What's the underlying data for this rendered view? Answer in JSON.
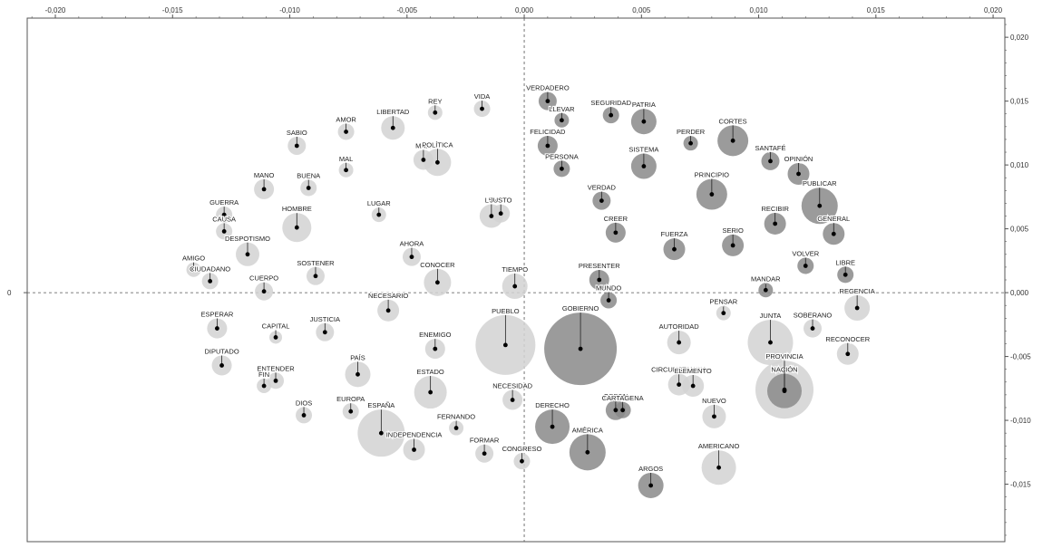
{
  "chart_data": {
    "type": "scatter",
    "title": "",
    "xlabel": "",
    "ylabel": "",
    "xlim": [
      -0.0212,
      0.0205
    ],
    "ylim": [
      -0.0195,
      0.0215
    ],
    "grid": false,
    "zero_lines": true,
    "x_ticks": [
      -0.02,
      -0.015,
      -0.01,
      -0.005,
      0.0,
      0.005,
      0.01,
      0.015,
      0.02
    ],
    "x_tick_labels": [
      "-0,020",
      "-0,015",
      "-0,010",
      "-0,005",
      "0,000",
      "0,005",
      "0,010",
      "0,015",
      "0,020"
    ],
    "y_ticks": [
      0.02,
      0.015,
      0.01,
      0.005,
      0.0,
      -0.005,
      -0.01,
      -0.015,
      -0.02
    ],
    "y_tick_labels": [
      "0,020",
      "0,015",
      "0,010",
      "0,005",
      "0,000",
      "-0,005",
      "-0,010",
      "-0,015",
      "-0,020"
    ],
    "y_axis_side_label": "0",
    "colors": {
      "light": "#d2d2d2",
      "dark": "#8a8a8a",
      "dot": "#000000",
      "axis": "#555555"
    },
    "points": [
      {
        "label": "VIDA",
        "x": -0.0018,
        "y": 0.0144,
        "size": 9,
        "group": "light"
      },
      {
        "label": "REY",
        "x": -0.0038,
        "y": 0.0141,
        "size": 8,
        "group": "light"
      },
      {
        "label": "LIBERTAD",
        "x": -0.0056,
        "y": 0.0129,
        "size": 13,
        "group": "light"
      },
      {
        "label": "AMOR",
        "x": -0.0076,
        "y": 0.0126,
        "size": 9,
        "group": "light"
      },
      {
        "label": "SABIO",
        "x": -0.0097,
        "y": 0.0115,
        "size": 10,
        "group": "light"
      },
      {
        "label": "MAL",
        "x": -0.0076,
        "y": 0.0096,
        "size": 8,
        "group": "light"
      },
      {
        "label": "MA...",
        "x": -0.0043,
        "y": 0.0104,
        "size": 11,
        "group": "light"
      },
      {
        "label": "POLÍTICA",
        "x": -0.0037,
        "y": 0.0102,
        "size": 15,
        "group": "light"
      },
      {
        "label": "BUENA",
        "x": -0.0092,
        "y": 0.0082,
        "size": 9,
        "group": "light"
      },
      {
        "label": "MANO",
        "x": -0.0111,
        "y": 0.0081,
        "size": 11,
        "group": "light"
      },
      {
        "label": "LEY",
        "x": -0.0014,
        "y": 0.006,
        "size": 13,
        "group": "light"
      },
      {
        "label": "JUSTO",
        "x": -0.001,
        "y": 0.0062,
        "size": 10,
        "group": "light"
      },
      {
        "label": "LUGAR",
        "x": -0.0062,
        "y": 0.0061,
        "size": 8,
        "group": "light"
      },
      {
        "label": "GUERRA",
        "x": -0.0128,
        "y": 0.0061,
        "size": 9,
        "group": "light"
      },
      {
        "label": "CAUSA",
        "x": -0.0128,
        "y": 0.0048,
        "size": 9,
        "group": "light"
      },
      {
        "label": "HOMBRE",
        "x": -0.0097,
        "y": 0.0051,
        "size": 16,
        "group": "light"
      },
      {
        "label": "DESPOTISMO",
        "x": -0.0118,
        "y": 0.003,
        "size": 13,
        "group": "light"
      },
      {
        "label": "AHORA",
        "x": -0.0048,
        "y": 0.0028,
        "size": 10,
        "group": "light"
      },
      {
        "label": "AMIGO",
        "x": -0.0141,
        "y": 0.0018,
        "size": 8,
        "group": "light"
      },
      {
        "label": "CIUDADANO",
        "x": -0.0134,
        "y": 0.0009,
        "size": 9,
        "group": "light"
      },
      {
        "label": "SOSTENER",
        "x": -0.0089,
        "y": 0.0013,
        "size": 10,
        "group": "light"
      },
      {
        "label": "CONOCER",
        "x": -0.0037,
        "y": 0.0008,
        "size": 15,
        "group": "light"
      },
      {
        "label": "CUERPO",
        "x": -0.0111,
        "y": 0.0001,
        "size": 10,
        "group": "light"
      },
      {
        "label": "TIEMPO",
        "x": -0.0004,
        "y": 0.0005,
        "size": 14,
        "group": "light"
      },
      {
        "label": "NECESARIO",
        "x": -0.0058,
        "y": -0.0014,
        "size": 12,
        "group": "light"
      },
      {
        "label": "ESPERAR",
        "x": -0.0131,
        "y": -0.0028,
        "size": 11,
        "group": "light"
      },
      {
        "label": "CAPITAL",
        "x": -0.0106,
        "y": -0.0035,
        "size": 7,
        "group": "light"
      },
      {
        "label": "JUSTICIA",
        "x": -0.0085,
        "y": -0.0031,
        "size": 10,
        "group": "light"
      },
      {
        "label": "ENEMIGO",
        "x": -0.0038,
        "y": -0.0044,
        "size": 11,
        "group": "light"
      },
      {
        "label": "PUEBLO",
        "x": -0.0008,
        "y": -0.0041,
        "size": 33,
        "group": "light"
      },
      {
        "label": "DIPUTADO",
        "x": -0.0129,
        "y": -0.0057,
        "size": 11,
        "group": "light"
      },
      {
        "label": "PAÍS",
        "x": -0.0071,
        "y": -0.0064,
        "size": 14,
        "group": "light"
      },
      {
        "label": "ENTENDER",
        "x": -0.0106,
        "y": -0.0069,
        "size": 9,
        "group": "light"
      },
      {
        "label": "FIN",
        "x": -0.0111,
        "y": -0.0073,
        "size": 8,
        "group": "light"
      },
      {
        "label": "ESTADO",
        "x": -0.004,
        "y": -0.0078,
        "size": 18,
        "group": "light"
      },
      {
        "label": "NECESIDAD",
        "x": -0.0005,
        "y": -0.0084,
        "size": 11,
        "group": "light"
      },
      {
        "label": "DIOS",
        "x": -0.0094,
        "y": -0.0096,
        "size": 9,
        "group": "light"
      },
      {
        "label": "EUROPA",
        "x": -0.0074,
        "y": -0.0093,
        "size": 9,
        "group": "light"
      },
      {
        "label": "ESPAÑA",
        "x": -0.0061,
        "y": -0.011,
        "size": 26,
        "group": "light"
      },
      {
        "label": "FERNANDO",
        "x": -0.0029,
        "y": -0.0106,
        "size": 8,
        "group": "light"
      },
      {
        "label": "INDEPENDENCIA",
        "x": -0.0047,
        "y": -0.0123,
        "size": 12,
        "group": "light"
      },
      {
        "label": "FORMAR",
        "x": -0.0017,
        "y": -0.0126,
        "size": 10,
        "group": "light"
      },
      {
        "label": "CONGRESO",
        "x": -0.0001,
        "y": -0.0132,
        "size": 9,
        "group": "light"
      },
      {
        "label": "VERDADERO",
        "x": 0.001,
        "y": 0.015,
        "size": 10,
        "group": "dark"
      },
      {
        "label": "LLEVAR",
        "x": 0.0016,
        "y": 0.0135,
        "size": 8,
        "group": "dark"
      },
      {
        "label": "FELICIDAD",
        "x": 0.001,
        "y": 0.0115,
        "size": 11,
        "group": "dark"
      },
      {
        "label": "PERSONA",
        "x": 0.0016,
        "y": 0.0097,
        "size": 9,
        "group": "dark"
      },
      {
        "label": "SEGURIDAD",
        "x": 0.0037,
        "y": 0.0139,
        "size": 9,
        "group": "dark"
      },
      {
        "label": "PATRIA",
        "x": 0.0051,
        "y": 0.0134,
        "size": 14,
        "group": "dark"
      },
      {
        "label": "PERDER",
        "x": 0.0071,
        "y": 0.0117,
        "size": 8,
        "group": "dark"
      },
      {
        "label": "CORTES",
        "x": 0.0089,
        "y": 0.0119,
        "size": 17,
        "group": "dark"
      },
      {
        "label": "SISTEMA",
        "x": 0.0051,
        "y": 0.0099,
        "size": 14,
        "group": "dark"
      },
      {
        "label": "SANTAFÉ",
        "x": 0.0105,
        "y": 0.0103,
        "size": 10,
        "group": "dark"
      },
      {
        "label": "OPINIÓN",
        "x": 0.0117,
        "y": 0.0093,
        "size": 12,
        "group": "dark"
      },
      {
        "label": "PRINCIPIO",
        "x": 0.008,
        "y": 0.0077,
        "size": 17,
        "group": "dark"
      },
      {
        "label": "VERDAD",
        "x": 0.0033,
        "y": 0.0072,
        "size": 10,
        "group": "dark"
      },
      {
        "label": "PUBLICAR",
        "x": 0.0126,
        "y": 0.0068,
        "size": 20,
        "group": "dark"
      },
      {
        "label": "CREER",
        "x": 0.0039,
        "y": 0.0047,
        "size": 11,
        "group": "dark"
      },
      {
        "label": "RECIBIR",
        "x": 0.0107,
        "y": 0.0054,
        "size": 12,
        "group": "dark"
      },
      {
        "label": "GENERAL",
        "x": 0.0132,
        "y": 0.0046,
        "size": 12,
        "group": "dark"
      },
      {
        "label": "FUERZA",
        "x": 0.0064,
        "y": 0.0034,
        "size": 12,
        "group": "dark"
      },
      {
        "label": "SERIO",
        "x": 0.0089,
        "y": 0.0037,
        "size": 12,
        "group": "dark"
      },
      {
        "label": "VOLVER",
        "x": 0.012,
        "y": 0.0021,
        "size": 9,
        "group": "dark"
      },
      {
        "label": "LIBRE",
        "x": 0.0137,
        "y": 0.0014,
        "size": 9,
        "group": "dark"
      },
      {
        "label": "PRESENTER",
        "x": 0.0032,
        "y": 0.001,
        "size": 11,
        "group": "dark"
      },
      {
        "label": "MANDAR",
        "x": 0.0103,
        "y": 0.0002,
        "size": 8,
        "group": "dark"
      },
      {
        "label": "MUNDO",
        "x": 0.0036,
        "y": -0.0006,
        "size": 9,
        "group": "dark"
      },
      {
        "label": "REGENCIA",
        "x": 0.0142,
        "y": -0.0012,
        "size": 14,
        "group": "light"
      },
      {
        "label": "PENSAR",
        "x": 0.0085,
        "y": -0.0016,
        "size": 8,
        "group": "light"
      },
      {
        "label": "GOBIERNO",
        "x": 0.0024,
        "y": -0.0044,
        "size": 40,
        "group": "dark"
      },
      {
        "label": "AUTORIDAD",
        "x": 0.0066,
        "y": -0.0039,
        "size": 13,
        "group": "light"
      },
      {
        "label": "SOBERANO",
        "x": 0.0123,
        "y": -0.0028,
        "size": 10,
        "group": "light"
      },
      {
        "label": "JUNTA",
        "x": 0.0105,
        "y": -0.0039,
        "size": 25,
        "group": "light"
      },
      {
        "label": "RECONOCER",
        "x": 0.0138,
        "y": -0.0048,
        "size": 12,
        "group": "light"
      },
      {
        "label": "CIRCUNSTANCIA",
        "x": 0.0066,
        "y": -0.0072,
        "size": 12,
        "group": "light"
      },
      {
        "label": "ELEMENTO",
        "x": 0.0072,
        "y": -0.0073,
        "size": 12,
        "group": "light"
      },
      {
        "label": "NACIÓN",
        "x": 0.0111,
        "y": -0.0077,
        "size": 19,
        "group": "dark"
      },
      {
        "label": "PROVINCIA",
        "x": 0.0111,
        "y": -0.0076,
        "size": 32,
        "group": "light"
      },
      {
        "label": "ORDEN",
        "x": 0.0039,
        "y": -0.0092,
        "size": 11,
        "group": "dark"
      },
      {
        "label": "CARTAGENA",
        "x": 0.0042,
        "y": -0.0092,
        "size": 9,
        "group": "dark"
      },
      {
        "label": "NUEVO",
        "x": 0.0081,
        "y": -0.0097,
        "size": 13,
        "group": "light"
      },
      {
        "label": "DERECHO",
        "x": 0.0012,
        "y": -0.0105,
        "size": 19,
        "group": "dark"
      },
      {
        "label": "AMÉRICA",
        "x": 0.0027,
        "y": -0.0125,
        "size": 20,
        "group": "dark"
      },
      {
        "label": "AMERICANO",
        "x": 0.0083,
        "y": -0.0137,
        "size": 19,
        "group": "light"
      },
      {
        "label": "ARGOS",
        "x": 0.0054,
        "y": -0.0151,
        "size": 14,
        "group": "dark"
      }
    ]
  }
}
